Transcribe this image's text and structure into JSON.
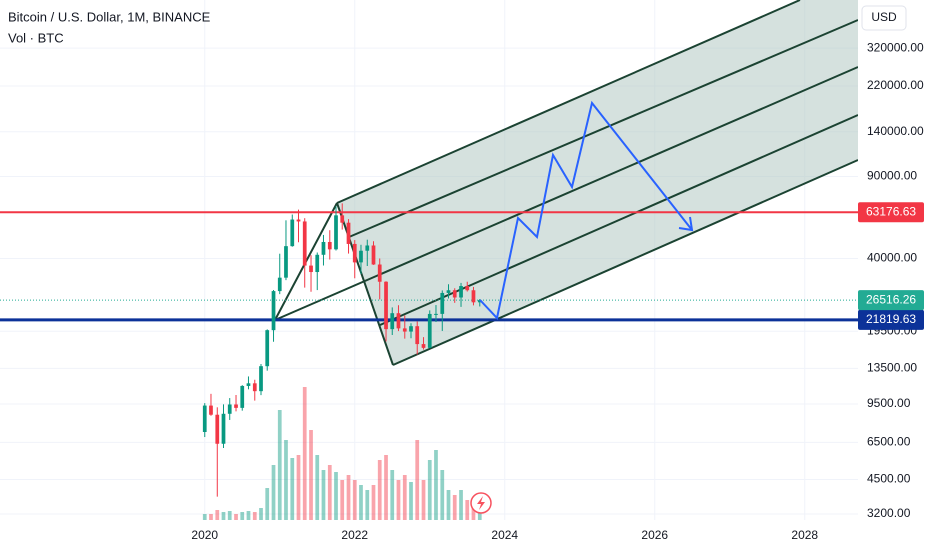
{
  "chart_data": {
    "type": "candlestick",
    "title": "Bitcoin / U.S. Dollar, 1M, BINANCE",
    "subtitle": "Vol · BTC",
    "currency": "USD",
    "log_scale": true,
    "up_color": "#089981",
    "down_color": "#f23645",
    "x": [
      2020,
      2020.083,
      2020.167,
      2020.25,
      2020.333,
      2020.417,
      2020.5,
      2020.583,
      2020.667,
      2020.75,
      2020.833,
      2020.917,
      2021,
      2021.083,
      2021.167,
      2021.25,
      2021.333,
      2021.417,
      2021.5,
      2021.583,
      2021.667,
      2021.75,
      2021.833,
      2021.917,
      2022,
      2022.083,
      2022.167,
      2022.25,
      2022.333,
      2022.417,
      2022.5,
      2022.583,
      2022.667,
      2022.75,
      2022.833,
      2022.917,
      2023,
      2023.083,
      2023.167,
      2023.25,
      2023.333,
      2023.417,
      2023.5,
      2023.583,
      2023.667
    ],
    "open": [
      7200,
      9350,
      8540,
      6410,
      8620,
      9450,
      9140,
      11350,
      11650,
      10780,
      13800,
      19700,
      28990,
      33100,
      45200,
      58800,
      57700,
      37300,
      35000,
      41500,
      47100,
      43800,
      61300,
      57000,
      46200,
      38500,
      43200,
      45500,
      37700,
      31800,
      19900,
      23300,
      20050,
      19430,
      20490,
      17170,
      16540,
      23130,
      23140,
      28460,
      29230,
      27210,
      30470,
      29230,
      25940
    ],
    "high": [
      9580,
      10500,
      9190,
      9460,
      10070,
      10380,
      11440,
      12470,
      12070,
      14100,
      19860,
      29300,
      41950,
      58350,
      61790,
      64850,
      59600,
      41330,
      42450,
      50500,
      52920,
      67000,
      69000,
      59050,
      47990,
      45820,
      48190,
      47440,
      40020,
      31960,
      24670,
      25210,
      22800,
      21090,
      21480,
      18390,
      23960,
      25250,
      29180,
      31000,
      29820,
      31430,
      31800,
      30200,
      26800
    ],
    "low": [
      6850,
      8450,
      3800,
      6150,
      8110,
      8830,
      8890,
      10980,
      9820,
      10370,
      13200,
      17570,
      28130,
      32300,
      44950,
      47000,
      30000,
      28800,
      29280,
      37330,
      39600,
      43280,
      53250,
      42000,
      32900,
      34320,
      37150,
      37580,
      26700,
      17620,
      18780,
      19520,
      18120,
      18190,
      15480,
      16260,
      16500,
      21350,
      19550,
      26940,
      25810,
      24800,
      28860,
      25170,
      24900
    ],
    "close": [
      9350,
      8540,
      6410,
      8620,
      9450,
      9140,
      11350,
      11650,
      10780,
      13800,
      19700,
      28990,
      33100,
      45200,
      58800,
      57700,
      37300,
      35000,
      41500,
      47100,
      43800,
      61300,
      57000,
      46200,
      38500,
      43200,
      45500,
      37700,
      31800,
      19900,
      23300,
      20050,
      19430,
      20490,
      17170,
      16540,
      23130,
      23140,
      28460,
      29230,
      27210,
      30470,
      29230,
      25940,
      26516.26
    ],
    "volume": [
      60000,
      60000,
      100000,
      80000,
      90000,
      60000,
      80000,
      90000,
      80000,
      120000,
      320000,
      550000,
      1100000,
      800000,
      620000,
      650000,
      1330000,
      900000,
      650000,
      500000,
      550000,
      480000,
      400000,
      450000,
      400000,
      350000,
      300000,
      350000,
      600000,
      650000,
      500000,
      400000,
      450000,
      380000,
      800000,
      400000,
      600000,
      700000,
      500000,
      300000,
      250000,
      300000,
      200000,
      200000,
      100000
    ],
    "xlim": [
      2017.27,
      2028.71
    ],
    "xticks": [
      2020,
      2022,
      2024,
      2026,
      2028
    ],
    "ylim": [
      3017,
      515000
    ],
    "yticks": [
      {
        "value": 320000,
        "label": "320000.00"
      },
      {
        "value": 220000,
        "label": "220000.00"
      },
      {
        "value": 140000,
        "label": "140000.00"
      },
      {
        "value": 90000,
        "label": "90000.00"
      },
      {
        "value": 40000,
        "label": "40000.00"
      },
      {
        "value": 19500,
        "label": "19500.00"
      },
      {
        "value": 13500,
        "label": "13500.00"
      },
      {
        "value": 9500,
        "label": "9500.00"
      },
      {
        "value": 6500,
        "label": "6500.00"
      },
      {
        "value": 4500,
        "label": "4500.00"
      },
      {
        "value": 3200,
        "label": "3200.00"
      }
    ],
    "y2lim": [
      0,
      5200000
    ],
    "grid": true,
    "hlines": [
      {
        "value": 63176.63,
        "label": "63176.63",
        "color": "#f23645"
      },
      {
        "value": 21819.63,
        "label": "21819.63",
        "color": "#0c3299"
      }
    ],
    "last_price": {
      "value": 26516.26,
      "label": "26516.26",
      "color": "#22ab94"
    }
  }
}
